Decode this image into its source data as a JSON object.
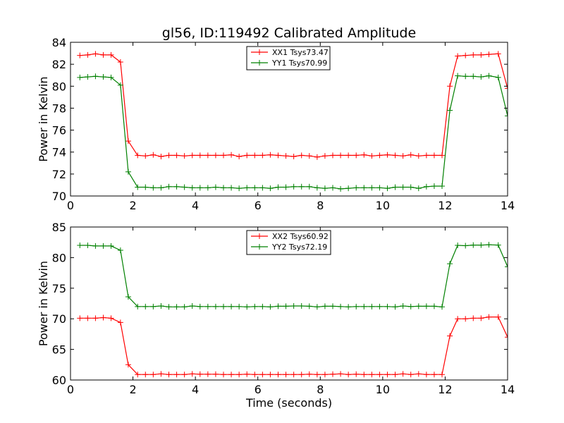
{
  "figure": {
    "title": "gl56, ID:119492 Calibrated Amplitude",
    "xlabel": "Time (seconds)"
  },
  "chart_data": [
    {
      "type": "line",
      "title": "gl56, ID:119492 Calibrated Amplitude",
      "xlabel": "",
      "ylabel": "Power in Kelvin",
      "xlim": [
        0,
        14
      ],
      "ylim": [
        70,
        84
      ],
      "xticks": [
        0,
        2,
        4,
        6,
        8,
        10,
        12,
        14
      ],
      "yticks": [
        70,
        72,
        74,
        76,
        78,
        80,
        82,
        84
      ],
      "grid": false,
      "legend_position": "top-center",
      "x": [
        0.3,
        0.55,
        0.8,
        1.05,
        1.3,
        1.6,
        1.85,
        2.15,
        2.4,
        2.65,
        2.9,
        3.15,
        3.4,
        3.65,
        3.9,
        4.15,
        4.4,
        4.65,
        4.9,
        5.15,
        5.4,
        5.65,
        5.9,
        6.15,
        6.4,
        6.65,
        6.9,
        7.15,
        7.4,
        7.65,
        7.9,
        8.15,
        8.4,
        8.65,
        8.9,
        9.15,
        9.4,
        9.65,
        9.9,
        10.15,
        10.4,
        10.65,
        10.9,
        11.15,
        11.4,
        11.65,
        11.9,
        12.15,
        12.4,
        12.65,
        12.9,
        13.15,
        13.4,
        13.7,
        14.0
      ],
      "series": [
        {
          "name": "XX1 Tsys73.47",
          "color": "#ff0000",
          "values": [
            82.8,
            82.85,
            82.95,
            82.85,
            82.85,
            82.2,
            75.0,
            73.7,
            73.65,
            73.75,
            73.6,
            73.7,
            73.7,
            73.65,
            73.7,
            73.7,
            73.7,
            73.7,
            73.7,
            73.75,
            73.6,
            73.7,
            73.7,
            73.7,
            73.75,
            73.7,
            73.65,
            73.6,
            73.7,
            73.65,
            73.55,
            73.65,
            73.7,
            73.7,
            73.7,
            73.7,
            73.75,
            73.65,
            73.7,
            73.75,
            73.7,
            73.65,
            73.75,
            73.65,
            73.7,
            73.7,
            73.7,
            80.0,
            82.75,
            82.8,
            82.85,
            82.85,
            82.9,
            82.95,
            79.8
          ]
        },
        {
          "name": "YY1 Tsys70.99",
          "color": "#008000",
          "values": [
            80.8,
            80.85,
            80.9,
            80.85,
            80.8,
            80.1,
            72.2,
            70.8,
            70.8,
            70.75,
            70.75,
            70.85,
            70.85,
            70.8,
            70.75,
            70.75,
            70.75,
            70.8,
            70.75,
            70.75,
            70.7,
            70.75,
            70.75,
            70.75,
            70.7,
            70.8,
            70.8,
            70.85,
            70.85,
            70.85,
            70.75,
            70.7,
            70.75,
            70.65,
            70.7,
            70.75,
            70.75,
            70.75,
            70.75,
            70.7,
            70.8,
            70.8,
            70.8,
            70.7,
            70.85,
            70.9,
            70.9,
            77.8,
            80.95,
            80.9,
            80.9,
            80.85,
            80.95,
            80.8,
            77.3
          ]
        }
      ]
    },
    {
      "type": "line",
      "title": "",
      "xlabel": "Time (seconds)",
      "ylabel": "Power in Kelvin",
      "xlim": [
        0,
        14
      ],
      "ylim": [
        60,
        85
      ],
      "xticks": [
        0,
        2,
        4,
        6,
        8,
        10,
        12,
        14
      ],
      "yticks": [
        60,
        65,
        70,
        75,
        80,
        85
      ],
      "grid": false,
      "legend_position": "top-center",
      "x": [
        0.3,
        0.55,
        0.8,
        1.05,
        1.3,
        1.6,
        1.85,
        2.15,
        2.4,
        2.65,
        2.9,
        3.15,
        3.4,
        3.65,
        3.9,
        4.15,
        4.4,
        4.65,
        4.9,
        5.15,
        5.4,
        5.65,
        5.9,
        6.15,
        6.4,
        6.65,
        6.9,
        7.15,
        7.4,
        7.65,
        7.9,
        8.15,
        8.4,
        8.65,
        8.9,
        9.15,
        9.4,
        9.65,
        9.9,
        10.15,
        10.4,
        10.65,
        10.9,
        11.15,
        11.4,
        11.65,
        11.9,
        12.15,
        12.4,
        12.65,
        12.9,
        13.15,
        13.4,
        13.7,
        14.0
      ],
      "series": [
        {
          "name": "XX2 Tsys60.92",
          "color": "#ff0000",
          "values": [
            70.1,
            70.1,
            70.1,
            70.2,
            70.1,
            69.4,
            62.5,
            60.9,
            60.9,
            60.9,
            61.0,
            60.9,
            60.9,
            60.9,
            61.0,
            60.95,
            60.95,
            60.95,
            60.9,
            60.9,
            60.9,
            60.95,
            60.9,
            60.9,
            60.9,
            60.9,
            60.9,
            60.9,
            60.9,
            60.95,
            60.9,
            60.9,
            60.95,
            61.0,
            60.9,
            60.95,
            60.9,
            60.9,
            60.9,
            60.9,
            60.9,
            61.0,
            60.9,
            61.0,
            60.9,
            60.9,
            60.9,
            67.2,
            70.0,
            70.0,
            70.1,
            70.1,
            70.3,
            70.3,
            67.0
          ]
        },
        {
          "name": "YY2 Tsys72.19",
          "color": "#008000",
          "values": [
            82.0,
            82.0,
            81.9,
            81.9,
            81.9,
            81.2,
            73.6,
            72.0,
            72.0,
            72.0,
            72.1,
            71.95,
            71.95,
            71.95,
            72.1,
            72.0,
            72.0,
            72.0,
            72.0,
            72.0,
            72.0,
            71.95,
            72.0,
            72.0,
            71.95,
            72.05,
            72.05,
            72.1,
            72.1,
            72.05,
            71.95,
            72.05,
            72.05,
            72.0,
            71.95,
            72.0,
            72.0,
            72.0,
            72.0,
            72.0,
            71.95,
            72.1,
            72.0,
            72.05,
            72.05,
            72.05,
            71.95,
            79.0,
            82.0,
            81.95,
            82.05,
            82.05,
            82.1,
            82.05,
            78.5
          ]
        }
      ]
    }
  ]
}
